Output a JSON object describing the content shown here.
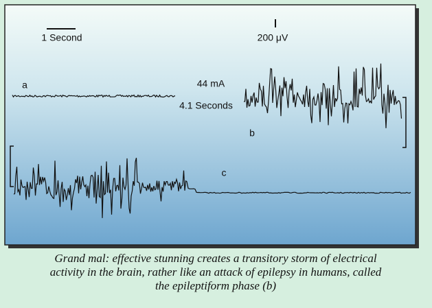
{
  "figure": {
    "scale_time": "1 Second",
    "scale_voltage": "200 μV",
    "traces": [
      {
        "label": "a"
      },
      {
        "label": "b"
      },
      {
        "label": "c"
      }
    ],
    "stimulus_current": "44 mA",
    "stimulus_duration": "4.1 Seconds"
  },
  "caption": {
    "lines": [
      "Grand mal: effective stunning creates a transitory storm of electrical",
      "activity in the brain, rather like an attack of epilepsy in humans, called",
      "the epileptiform phase (b)"
    ]
  }
}
